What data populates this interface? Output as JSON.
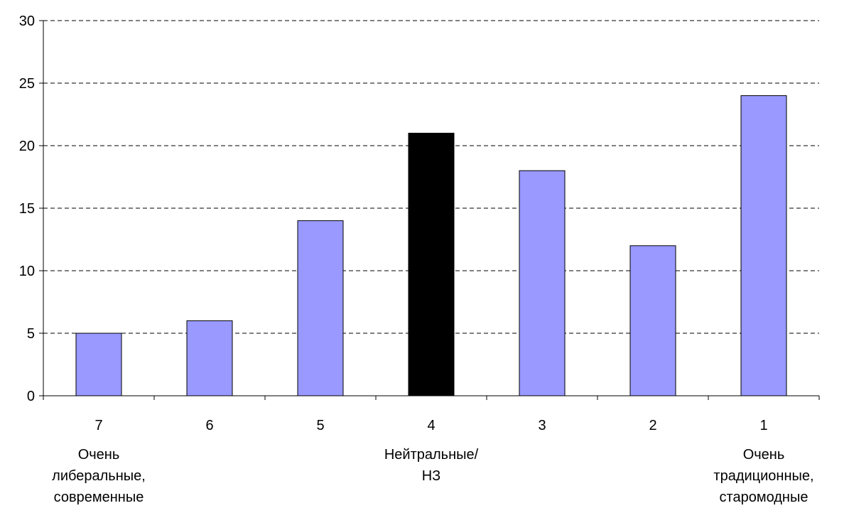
{
  "chart_data": {
    "type": "bar",
    "title": "",
    "xlabel": "",
    "ylabel": "",
    "categories": [
      "7",
      "6",
      "5",
      "4",
      "3",
      "2",
      "1"
    ],
    "values": [
      5,
      6,
      14,
      21,
      18,
      12,
      24
    ],
    "ylim": [
      0,
      30
    ],
    "yticks": [
      "0",
      "5",
      "10",
      "15",
      "20",
      "25",
      "30"
    ],
    "grid": "horizontal dashed",
    "legend": "none",
    "bar_color": "#9999ff",
    "highlight_index": 3,
    "highlight_color": "#000000",
    "annotations": [
      {
        "category_index": 0,
        "lines": [
          "Очень",
          "либеральные,",
          "современные"
        ]
      },
      {
        "category_index": 3,
        "lines": [
          "Нейтральные/",
          "НЗ"
        ]
      },
      {
        "category_index": 6,
        "lines": [
          "Очень",
          "традиционные,",
          "старомодные"
        ]
      }
    ]
  }
}
